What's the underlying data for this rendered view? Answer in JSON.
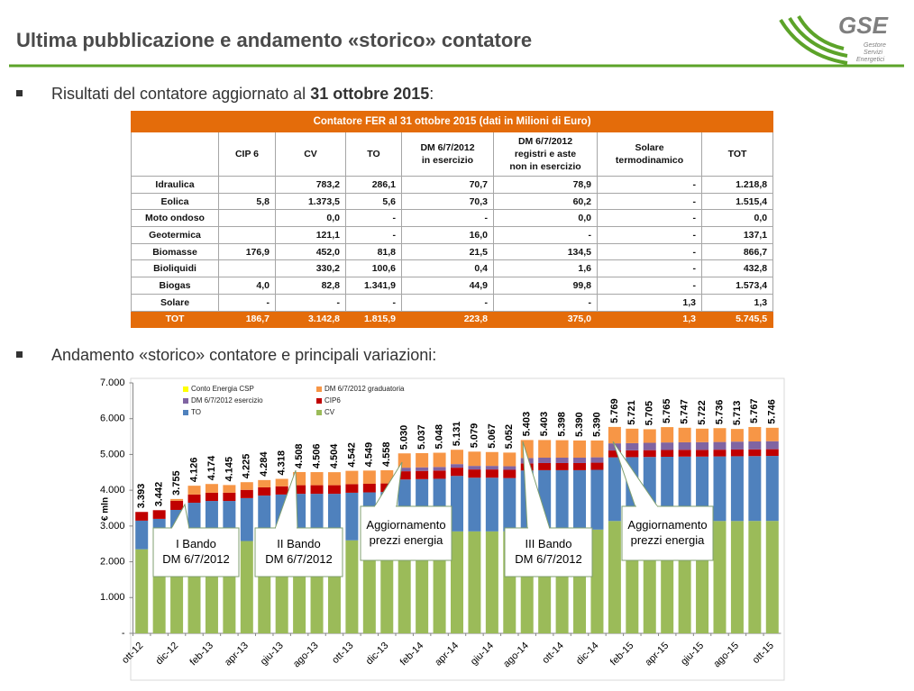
{
  "header": {
    "title": "Ultima pubblicazione e andamento «storico» contatore",
    "logo": {
      "name": "GSE",
      "lines": [
        "Gestore",
        "Servizi",
        "Energetici"
      ]
    }
  },
  "bullets": [
    {
      "parts": [
        "Risultati del contatore aggiornato al ",
        "31 ottobre 2015",
        ":"
      ]
    },
    {
      "parts": [
        "Andamento «storico» contatore e principali variazioni:"
      ]
    }
  ],
  "table": {
    "title": "Contatore FER al 31 ottobre 2015 (dati in Milioni di Euro)",
    "columns": [
      null,
      [
        "CIP 6"
      ],
      [
        "CV"
      ],
      [
        "TO"
      ],
      [
        "DM 6/7/2012",
        "in esercizio"
      ],
      [
        "DM 6/7/2012",
        "registri e aste",
        "non in esercizio"
      ],
      [
        "Solare",
        "termodinamico"
      ],
      [
        "TOT"
      ]
    ],
    "rows": [
      [
        "Idraulica",
        null,
        "783,2",
        "286,1",
        "70,7",
        "78,9",
        "-",
        "1.218,8"
      ],
      [
        "Eolica",
        "5,8",
        "1.373,5",
        "5,6",
        "70,3",
        "60,2",
        "-",
        "1.515,4"
      ],
      [
        "Moto ondoso",
        null,
        "0,0",
        "-",
        "-",
        "0,0",
        "-",
        "0,0"
      ],
      [
        "Geotermica",
        null,
        "121,1",
        "-",
        "16,0",
        "-",
        "-",
        "137,1"
      ],
      [
        "Biomasse",
        "176,9",
        "452,0",
        "81,8",
        "21,5",
        "134,5",
        "-",
        "866,7"
      ],
      [
        "Bioliquidi",
        null,
        "330,2",
        "100,6",
        "0,4",
        "1,6",
        "-",
        "432,8"
      ],
      [
        "Biogas",
        "4,0",
        "82,8",
        "1.341,9",
        "44,9",
        "99,8",
        "-",
        "1.573,4"
      ],
      [
        "Solare",
        "-",
        "-",
        "-",
        "-",
        "-",
        "1,3",
        "1,3"
      ],
      [
        "TOT",
        "186,7",
        "3.142,8",
        "1.815,9",
        "223,8",
        "375,0",
        "1,3",
        "5.745,5"
      ]
    ]
  },
  "chart_data": {
    "type": "stacked_bar",
    "y_label": "€ mln",
    "categories": [
      "ott-12",
      null,
      "dic-12",
      null,
      "feb-13",
      null,
      "apr-13",
      null,
      "giu-13",
      null,
      "ago-13",
      null,
      "ott-13",
      null,
      "dic-13",
      null,
      "feb-14",
      null,
      "apr-14",
      null,
      "giu-14",
      null,
      "ago-14",
      null,
      "ott-14",
      null,
      "dic-14",
      null,
      "feb-15",
      null,
      "apr-15",
      null,
      "giu-15",
      null,
      "ago-15",
      null,
      "ott-15"
    ],
    "ylim": [
      0,
      7000
    ],
    "yticks": [
      {
        "value": 0,
        "label": "-"
      },
      {
        "value": 1000,
        "label": "1.000"
      },
      {
        "value": 2000,
        "label": "2.000"
      },
      {
        "value": 3000,
        "label": "3.000"
      },
      {
        "value": 4000,
        "label": "4.000"
      },
      {
        "value": 5000,
        "label": "5.000"
      },
      {
        "value": 6000,
        "label": "6.000"
      },
      {
        "value": 7000,
        "label": "7.000"
      }
    ],
    "grid": false,
    "series": [
      {
        "name": "CV",
        "color": "#9bbb59",
        "values": [
          2350,
          2380,
          2500,
          2550,
          2550,
          2550,
          2580,
          2600,
          2600,
          2600,
          2600,
          2600,
          2600,
          2600,
          2600,
          2850,
          2850,
          2850,
          2850,
          2850,
          2850,
          2850,
          2900,
          2900,
          2900,
          2900,
          2900,
          3140,
          3140,
          3140,
          3140,
          3140,
          3140,
          3140,
          3140,
          3142,
          3143
        ]
      },
      {
        "name": "TO",
        "color": "#4f81bd",
        "values": [
          800,
          820,
          950,
          1100,
          1150,
          1150,
          1200,
          1250,
          1280,
          1300,
          1300,
          1300,
          1330,
          1340,
          1350,
          1450,
          1460,
          1470,
          1550,
          1500,
          1500,
          1490,
          1650,
          1660,
          1660,
          1660,
          1670,
          1780,
          1785,
          1790,
          1795,
          1800,
          1800,
          1805,
          1810,
          1812,
          1816
        ]
      },
      {
        "name": "CIP6",
        "color": "#c00000",
        "values": [
          243,
          242,
          255,
          230,
          230,
          230,
          230,
          230,
          230,
          240,
          240,
          240,
          240,
          240,
          240,
          230,
          230,
          230,
          230,
          230,
          230,
          230,
          200,
          200,
          200,
          200,
          200,
          190,
          190,
          190,
          190,
          190,
          188,
          188,
          188,
          187,
          187
        ]
      },
      {
        "name": "DM 6/7/2012 esercizio",
        "color": "#8064a2",
        "values": [
          0,
          0,
          0,
          0,
          0,
          0,
          0,
          0,
          0,
          0,
          0,
          0,
          0,
          0,
          0,
          100,
          100,
          100,
          100,
          100,
          100,
          100,
          150,
          150,
          150,
          150,
          150,
          200,
          200,
          205,
          210,
          210,
          215,
          215,
          220,
          222,
          224
        ]
      },
      {
        "name": "DM 6/7/2012 graduatoria",
        "color": "#f79646",
        "values": [
          0,
          0,
          50,
          246,
          244,
          215,
          215,
          204,
          208,
          368,
          366,
          364,
          372,
          369,
          368,
          400,
          397,
          398,
          401,
          399,
          387,
          382,
          503,
          493,
          488,
          480,
          470,
          458,
          405,
          379,
          429,
          406,
          378,
          387,
          354,
          403,
          375
        ]
      },
      {
        "name": "Conto Energia CSP",
        "color": "#ffff00",
        "values": [
          0,
          0,
          0,
          0,
          0,
          0,
          0,
          0,
          0,
          0,
          0,
          0,
          0,
          0,
          0,
          0,
          0,
          0,
          0,
          0,
          0,
          0,
          0,
          0,
          0,
          0,
          0,
          1,
          1,
          1,
          1,
          1,
          1,
          1,
          1,
          1,
          1
        ]
      }
    ],
    "totals": {
      "values": [
        3393,
        3442,
        3755,
        4126,
        4174,
        4145,
        4225,
        4284,
        4318,
        4508,
        4506,
        4504,
        4542,
        4549,
        4558,
        5030,
        5037,
        5048,
        5131,
        5079,
        5067,
        5052,
        5403,
        5403,
        5398,
        5390,
        5390,
        5769,
        5721,
        5705,
        5765,
        5747,
        5722,
        5736,
        5713,
        5767,
        5746
      ],
      "value_labels": [
        "3.393",
        "3.442",
        "3.755",
        "4.126",
        "4.174",
        "4.145",
        "4.225",
        "4.284",
        "4.318",
        "4.508",
        "4.506",
        "4.504",
        "4.542",
        "4.549",
        "4.558",
        "5.030",
        "5.037",
        "5.048",
        "5.131",
        "5.079",
        "5.067",
        "5.052",
        "5.403",
        "5.403",
        "5.398",
        "5.390",
        "5.390",
        "5.769",
        "5.721",
        "5.705",
        "5.765",
        "5.747",
        "5.722",
        "5.736",
        "5.713",
        "5.767",
        "5.746"
      ]
    },
    "annotations": [
      {
        "lines": [
          "I Bando",
          "DM 6/7/2012"
        ]
      },
      {
        "lines": [
          "II Bando",
          "DM 6/7/2012"
        ]
      },
      {
        "lines": [
          "Aggiornamento",
          "prezzi energia"
        ]
      },
      {
        "lines": [
          "III Bando",
          "DM 6/7/2012"
        ]
      },
      {
        "lines": [
          "Aggiornamento",
          "prezzi energia"
        ]
      }
    ]
  }
}
